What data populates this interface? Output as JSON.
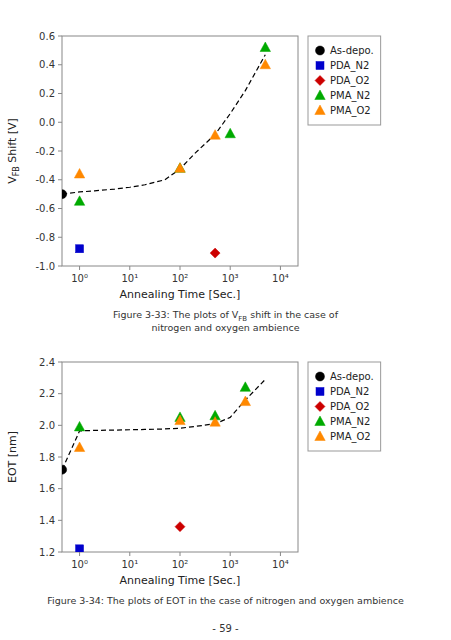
{
  "chart_data": [
    {
      "type": "scatter",
      "ylabel": [
        {
          "text": "V"
        },
        {
          "text": "FB",
          "sub": true
        },
        {
          "text": " Shift [V]"
        }
      ],
      "xlabel": "Annealing Time [Sec.]",
      "log": "x",
      "xlim": [
        0.44668359215096315,
        22387.21138568338
      ],
      "xticks": [
        {
          "value": 1,
          "label": "10⁰"
        },
        {
          "value": 10,
          "label": "10¹"
        },
        {
          "value": 100,
          "label": "10²"
        },
        {
          "value": 1000,
          "label": "10³"
        },
        {
          "value": 10000,
          "label": "10⁴"
        }
      ],
      "ylim": [
        -1.0,
        0.6
      ],
      "yticks": [
        {
          "value": -1.0,
          "label": "-1.0"
        },
        -0.8,
        -0.6,
        -0.4,
        -0.2,
        {
          "value": 0.0,
          "label": "0.0"
        },
        0.2,
        0.4,
        0.6
      ],
      "grid": false,
      "legend": "right",
      "series": [
        {
          "type": "line",
          "line_style": "dashed",
          "color": "#000000",
          "x": [
            0.45,
            1,
            2,
            5,
            10,
            20,
            50,
            100,
            200,
            500,
            1000,
            2000,
            5000
          ],
          "values": [
            -0.5,
            -0.485,
            -0.477,
            -0.465,
            -0.452,
            -0.435,
            -0.4,
            -0.325,
            -0.215,
            -0.085,
            0.06,
            0.22,
            0.47
          ]
        },
        {
          "name": "As-depo.",
          "type": "scatter",
          "color": "#000000",
          "marker": "circle",
          "x": [
            0.45
          ],
          "values": [
            -0.5
          ]
        },
        {
          "name": "PDA_N2",
          "type": "scatter",
          "color": "#0000cc",
          "marker": "square",
          "x": [
            1
          ],
          "values": [
            -0.88
          ]
        },
        {
          "name": "PDA_O2",
          "type": "scatter",
          "color": "#cc0000",
          "marker": "diamond",
          "x": [
            500
          ],
          "values": [
            -0.91
          ]
        },
        {
          "name": "PMA_N2",
          "type": "scatter",
          "color": "#00aa00",
          "marker": "triangle",
          "x": [
            1,
            100,
            1000,
            5000
          ],
          "values": [
            -0.55,
            -0.32,
            -0.08,
            0.52
          ]
        },
        {
          "name": "PMA_O2",
          "type": "scatter",
          "color": "#ff8800",
          "marker": "triangle",
          "x": [
            1,
            100,
            500,
            5000
          ],
          "values": [
            -0.36,
            -0.32,
            -0.09,
            0.4
          ]
        }
      ],
      "caption": [
        [
          {
            "text": "Figure 3-33: The plots of V"
          },
          {
            "text": "FB",
            "sub": true
          },
          {
            "text": " shift in the case of"
          }
        ],
        [
          {
            "text": "nitrogen and oxygen ambience"
          }
        ]
      ]
    },
    {
      "type": "scatter",
      "ylabel": "EOT [nm]",
      "xlabel": "Annealing Time [Sec.]",
      "log": "x",
      "xlim": [
        0.44668359215096315,
        22387.21138568338
      ],
      "xticks": [
        {
          "value": 1,
          "label": "10⁰"
        },
        {
          "value": 10,
          "label": "10¹"
        },
        {
          "value": 100,
          "label": "10²"
        },
        {
          "value": 1000,
          "label": "10³"
        },
        {
          "value": 10000,
          "label": "10⁴"
        }
      ],
      "ylim": [
        1.2,
        2.4
      ],
      "yticks": [
        1.2,
        1.4,
        1.6,
        1.8,
        {
          "value": 2.0,
          "label": "2.0"
        },
        2.2,
        2.4
      ],
      "grid": false,
      "legend": "right",
      "series": [
        {
          "type": "line",
          "line_style": "dashed",
          "color": "#000000",
          "x": [
            0.45,
            1,
            2,
            5,
            10,
            20,
            50,
            100,
            200,
            500,
            1000,
            2000,
            5000
          ],
          "values": [
            1.72,
            1.965,
            1.968,
            1.97,
            1.972,
            1.974,
            1.977,
            1.982,
            1.993,
            2.01,
            2.05,
            2.16,
            2.29
          ]
        },
        {
          "name": "As-depo.",
          "type": "scatter",
          "color": "#000000",
          "marker": "circle",
          "x": [
            0.45
          ],
          "values": [
            1.72
          ]
        },
        {
          "name": "PDA_N2",
          "type": "scatter",
          "color": "#0000cc",
          "marker": "square",
          "x": [
            1
          ],
          "values": [
            1.22
          ]
        },
        {
          "name": "PDA_O2",
          "type": "scatter",
          "color": "#cc0000",
          "marker": "diamond",
          "x": [
            100
          ],
          "values": [
            1.36
          ]
        },
        {
          "name": "PMA_N2",
          "type": "scatter",
          "color": "#00aa00",
          "marker": "triangle",
          "x": [
            1,
            100,
            500,
            2000
          ],
          "values": [
            1.99,
            2.05,
            2.06,
            2.24
          ]
        },
        {
          "name": "PMA_O2",
          "type": "scatter",
          "color": "#ff8800",
          "marker": "triangle",
          "x": [
            1,
            100,
            500,
            2000
          ],
          "values": [
            1.86,
            2.03,
            2.02,
            2.15
          ]
        }
      ],
      "caption": [
        [
          {
            "text": "Figure 3-34: The plots of EOT in the case of nitrogen and oxygen ambience"
          }
        ]
      ]
    }
  ],
  "footer": "- 59 -"
}
